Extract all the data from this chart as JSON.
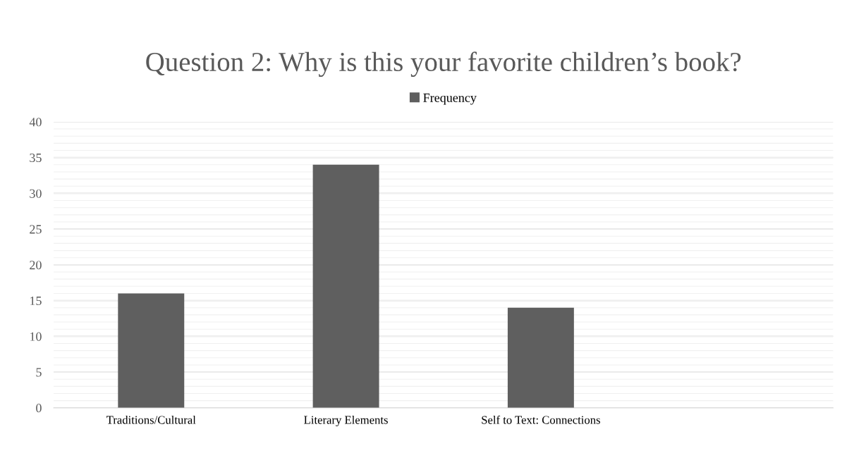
{
  "chart_data": {
    "type": "bar",
    "title": "Question 2: Why is this your favorite children’s book?",
    "categories": [
      "Traditions/Cultural",
      "Literary Elements",
      "Self to Text: Connections",
      null
    ],
    "series": [
      {
        "name": "Frequency",
        "color": "#5f5f5f",
        "values": [
          16,
          34,
          14,
          null
        ]
      }
    ],
    "ylim": [
      0,
      40
    ],
    "yticks": [
      0,
      5,
      10,
      15,
      20,
      25,
      30,
      35,
      40
    ],
    "grid": "y",
    "legend": "top"
  }
}
